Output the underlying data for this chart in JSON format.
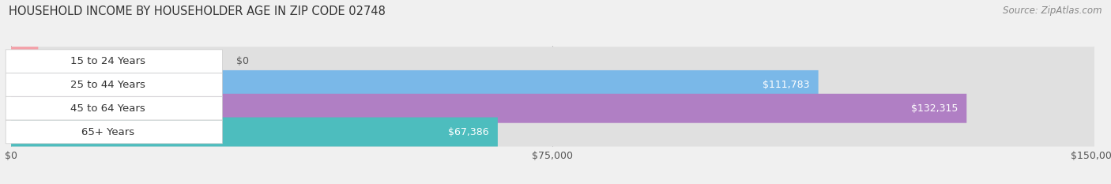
{
  "title": "HOUSEHOLD INCOME BY HOUSEHOLDER AGE IN ZIP CODE 02748",
  "source": "Source: ZipAtlas.com",
  "categories": [
    "15 to 24 Years",
    "25 to 44 Years",
    "45 to 64 Years",
    "65+ Years"
  ],
  "values": [
    0,
    111783,
    132315,
    67386
  ],
  "bar_colors": [
    "#f4a0a8",
    "#7ab8e8",
    "#b07fc4",
    "#4dbdbe"
  ],
  "bg_color": "#f0f0f0",
  "bar_bg_color": "#e0e0e0",
  "xlim": [
    0,
    150000
  ],
  "xticks": [
    0,
    75000,
    150000
  ],
  "xtick_labels": [
    "$0",
    "$75,000",
    "$150,000"
  ],
  "bar_height": 0.62,
  "figsize": [
    14.06,
    2.33
  ],
  "dpi": 100,
  "title_fontsize": 10.5,
  "label_fontsize": 9.5,
  "value_fontsize": 9.0,
  "tick_fontsize": 9,
  "source_fontsize": 8.5
}
